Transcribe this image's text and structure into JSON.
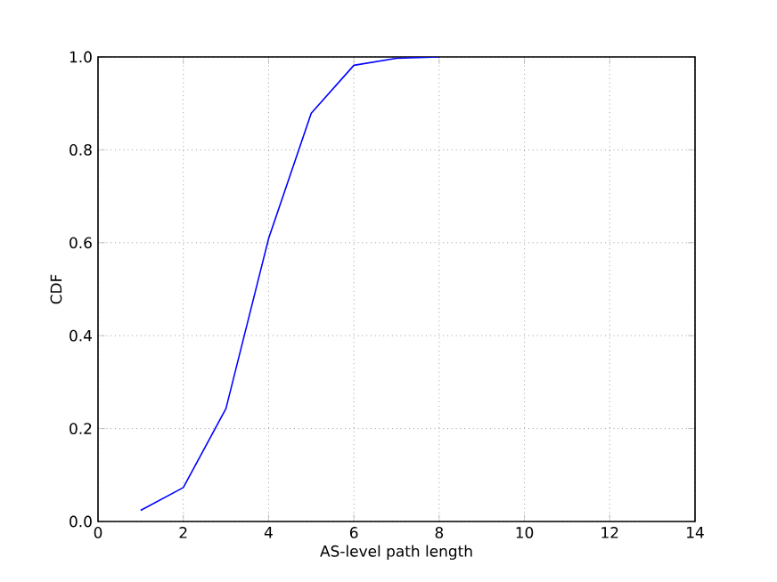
{
  "chart_data": {
    "type": "line",
    "xlabel": "AS-level path length",
    "ylabel": "CDF",
    "x": [
      1,
      2,
      3,
      4,
      5,
      6,
      7,
      8
    ],
    "series": [
      {
        "color": "#0000ff",
        "values": [
          0.024,
          0.073,
          0.243,
          0.609,
          0.879,
          0.982,
          0.997,
          1.0
        ]
      }
    ],
    "xlim": [
      0,
      14
    ],
    "ylim": [
      0,
      1
    ],
    "xticks": [
      0,
      2,
      4,
      6,
      8,
      10,
      12,
      14
    ],
    "yticks": [
      {
        "value": 0,
        "label": "0.0"
      },
      {
        "value": 0.2,
        "label": "0.2"
      },
      {
        "value": 0.4,
        "label": "0.4"
      },
      {
        "value": 0.6,
        "label": "0.6"
      },
      {
        "value": 0.8,
        "label": "0.8"
      },
      {
        "value": 1,
        "label": "1.0"
      }
    ],
    "grid": true,
    "marker": "none",
    "line_style": "solid"
  }
}
